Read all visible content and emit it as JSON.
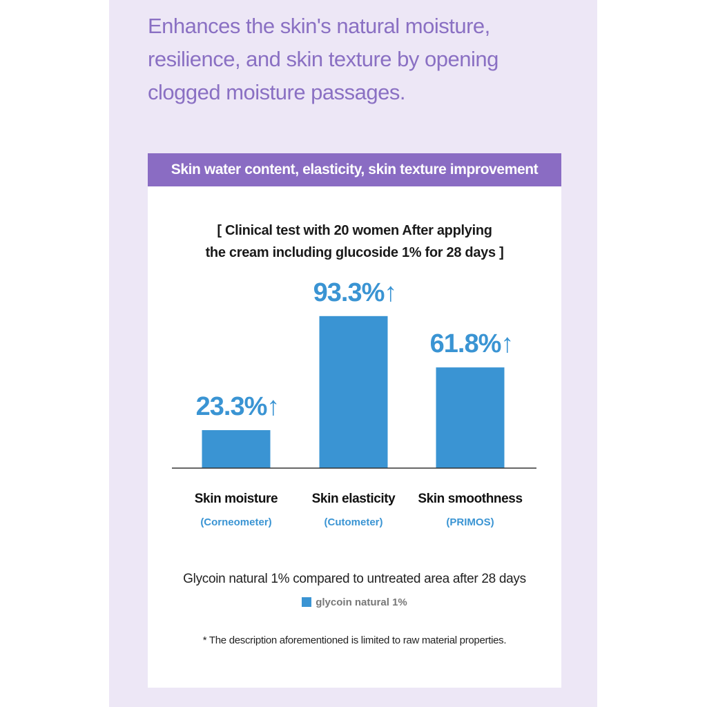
{
  "headline": {
    "line1": "Enhances the skin's natural moisture,",
    "line2": "resilience, and skin texture by opening",
    "line3": "clogged moisture passages."
  },
  "banner": "Skin water content, elasticity, skin texture improvement",
  "subtitle": {
    "line1": "[ Clinical test with 20 women After applying",
    "line2": "the cream including glucoside 1% for 28 days ]"
  },
  "chart_data": {
    "type": "bar",
    "categories": [
      "Skin moisture",
      "Skin elasticity",
      "Skin smoothness"
    ],
    "methods": [
      "(Corneometer)",
      "(Cutometer)",
      "(PRIMOS)"
    ],
    "series": [
      {
        "name": "glycoin natural 1%",
        "values": [
          23.3,
          93.3,
          61.8
        ]
      }
    ],
    "data_labels": [
      "23.3%↑",
      "93.3%↑",
      "61.8%↑"
    ],
    "ylim": [
      0,
      100
    ],
    "grid": false,
    "legend": "bottom",
    "bar_color": "#3a94d3",
    "label_color": "#3a94d3"
  },
  "note": "Glycoin natural 1% compared to untreated area after 28 days",
  "legend_label": "glycoin natural 1%",
  "disclaimer": "* The description aforementioned is limited to raw material properties."
}
